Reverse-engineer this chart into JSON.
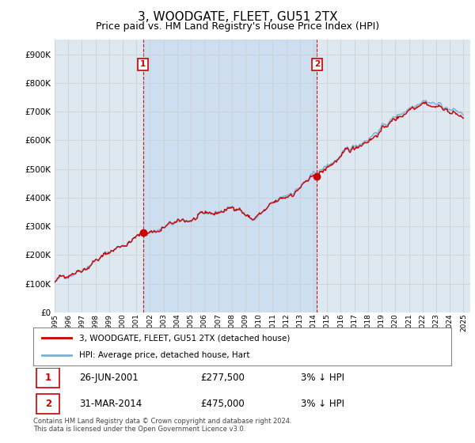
{
  "title": "3, WOODGATE, FLEET, GU51 2TX",
  "subtitle": "Price paid vs. HM Land Registry's House Price Index (HPI)",
  "title_fontsize": 11,
  "subtitle_fontsize": 9,
  "yticks": [
    0,
    100000,
    200000,
    300000,
    400000,
    500000,
    600000,
    700000,
    800000,
    900000
  ],
  "ytick_labels": [
    "£0",
    "£100K",
    "£200K",
    "£300K",
    "£400K",
    "£500K",
    "£600K",
    "£700K",
    "£800K",
    "£900K"
  ],
  "xlim_start": 1995.0,
  "xlim_end": 2025.5,
  "ylim_min": 0,
  "ylim_max": 950000,
  "grid_color": "#cccccc",
  "background_color": "#ffffff",
  "plot_bg_color": "#dde8f0",
  "marker1_x": 2001.487,
  "marker1_y": 277500,
  "marker1_label": "1",
  "marker1_date": "26-JUN-2001",
  "marker1_price": "£277,500",
  "marker1_hpi": "3% ↓ HPI",
  "marker2_x": 2014.247,
  "marker2_y": 475000,
  "marker2_label": "2",
  "marker2_date": "31-MAR-2014",
  "marker2_price": "£475,000",
  "marker2_hpi": "3% ↓ HPI",
  "line1_color": "#cc0000",
  "line2_color": "#7ab0d4",
  "line1_label": "3, WOODGATE, FLEET, GU51 2TX (detached house)",
  "line2_label": "HPI: Average price, detached house, Hart",
  "footnote": "Contains HM Land Registry data © Crown copyright and database right 2024.\nThis data is licensed under the Open Government Licence v3.0.",
  "marker_vline_color": "#cc0000",
  "marker_box_color": "#cc0000",
  "xtick_years": [
    1995,
    1996,
    1997,
    1998,
    1999,
    2000,
    2001,
    2002,
    2003,
    2004,
    2005,
    2006,
    2007,
    2008,
    2009,
    2010,
    2011,
    2012,
    2013,
    2014,
    2015,
    2016,
    2017,
    2018,
    2019,
    2020,
    2021,
    2022,
    2023,
    2024,
    2025
  ],
  "shade_color": "#ccddf0",
  "fill_alpha": 0.5
}
